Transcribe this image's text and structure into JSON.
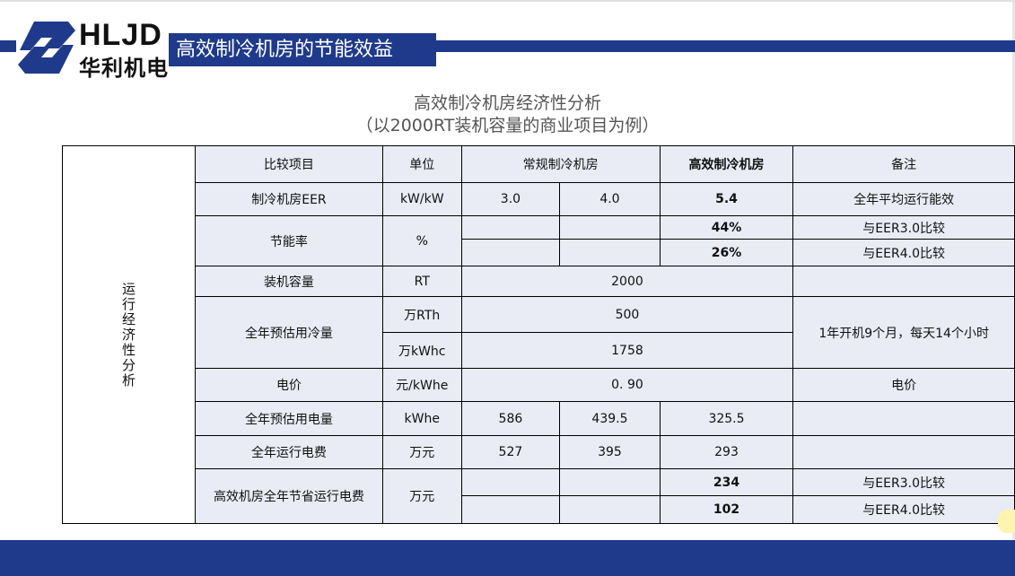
{
  "header": {
    "logo_en": "HLJD",
    "logo_cn": "华利机电",
    "title": "高效制冷机房的节能效益"
  },
  "subtitle": {
    "line1": "高效制冷机房经济性分析",
    "line2": "（以2000RT装机容量的商业项目为例）"
  },
  "table": {
    "side_label": "运行经济性分析",
    "headers": {
      "item": "比较项目",
      "unit": "单位",
      "conventional": "常规制冷机房",
      "efficient": "高效制冷机房",
      "remark": "备注"
    },
    "eer": {
      "item": "制冷机房EER",
      "unit": "kW/kW",
      "c1": "3.0",
      "c2": "4.0",
      "eff": "5.4",
      "remark": "全年平均运行能效"
    },
    "saving_rate": {
      "item": "节能率",
      "unit": "%",
      "eff1": "44%",
      "remark1": "与EER3.0比较",
      "eff2": "26%",
      "remark2": "与EER4.0比较"
    },
    "capacity": {
      "item": "装机容量",
      "unit": "RT",
      "value": "2000"
    },
    "cooling": {
      "item": "全年预估用冷量",
      "unit1": "万RTh",
      "value1": "500",
      "unit2": "万kWhc",
      "value2": "1758",
      "remark": "1年开机9个月，每天14个小时"
    },
    "price": {
      "item": "电价",
      "unit": "元/kWhe",
      "value": "0. 90",
      "remark": "电价"
    },
    "power": {
      "item": "全年预估用电量",
      "unit": "kWhe",
      "c1": "586",
      "c2": "439.5",
      "eff": "325.5"
    },
    "cost": {
      "item": "全年运行电费",
      "unit": "万元",
      "c1": "527",
      "c2": "395",
      "eff": "293"
    },
    "savings": {
      "item": "高效机房全年节省运行电费",
      "unit": "万元",
      "eff1": "234",
      "remark1": "与EER3.0比较",
      "eff2": "102",
      "remark2": "与EER4.0比较"
    }
  },
  "colors": {
    "brand": "#1f3a8a",
    "cell_bg": "#e9ebf5"
  }
}
